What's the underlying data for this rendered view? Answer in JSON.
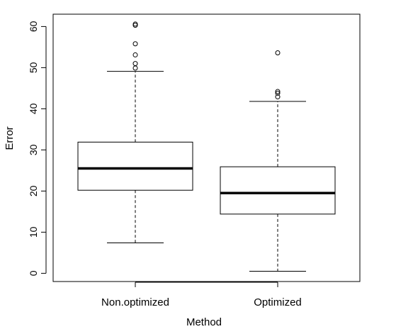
{
  "chart_data": {
    "type": "boxplot",
    "title": "",
    "xlabel": "Method",
    "ylabel": "Error",
    "ylim": [
      -2,
      63
    ],
    "yticks": [
      0,
      10,
      20,
      30,
      40,
      50,
      60
    ],
    "grid": false,
    "legend": "none",
    "colors": {
      "stroke": "#000000",
      "fill": "#ffffff",
      "background": "#ffffff"
    },
    "categories": [
      "Non.optimized",
      "Optimized"
    ],
    "boxes": [
      {
        "category": "Non.optimized",
        "whisker_low": 7.4,
        "q1": 20.2,
        "median": 25.5,
        "q3": 31.9,
        "whisker_high": 49.1,
        "outliers": [
          49.9,
          51.0,
          53.1,
          55.8,
          60.3,
          60.6
        ]
      },
      {
        "category": "Optimized",
        "whisker_low": 0.5,
        "q1": 14.4,
        "median": 19.5,
        "q3": 25.9,
        "whisker_high": 41.8,
        "outliers": [
          42.9,
          43.8,
          44.2,
          53.6
        ]
      }
    ]
  }
}
